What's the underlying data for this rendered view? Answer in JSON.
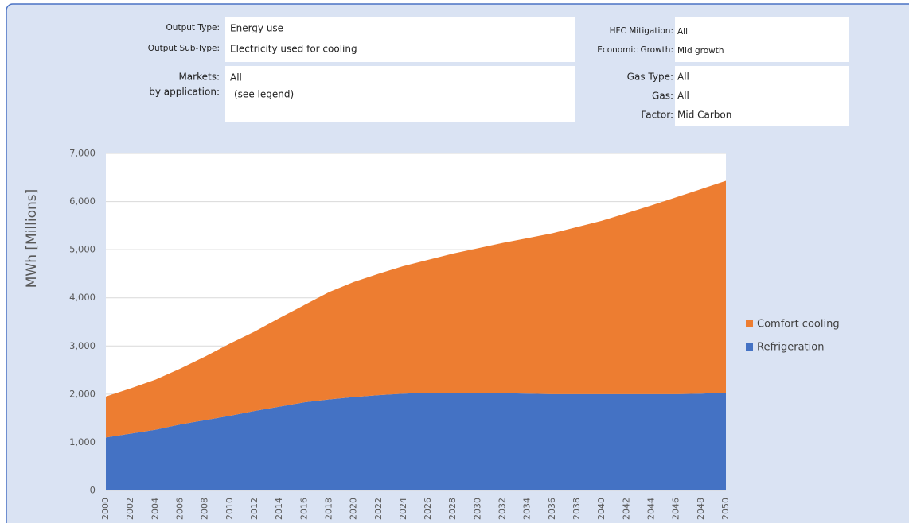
{
  "panel": {
    "left": [
      {
        "label": "Output Type:",
        "value": "Energy use"
      },
      {
        "label": "Output Sub-Type:",
        "value": "Electricity used for cooling"
      },
      {
        "label": "Markets:",
        "value": "All"
      },
      {
        "label": "by application:",
        "value": "(see legend)"
      }
    ],
    "right": [
      {
        "label": "HFC Mitigation:",
        "value": "All"
      },
      {
        "label": "Economic Growth:",
        "value": "Mid growth"
      },
      {
        "label": "Gas Type:",
        "value": "All"
      },
      {
        "label": "Gas:",
        "value": "All"
      },
      {
        "label": "Factor:",
        "value": "Mid Carbon"
      }
    ]
  },
  "chart_data": {
    "type": "stacked-area",
    "y_label": "MWh [Millions]",
    "categories": [
      "2000",
      "2002",
      "2004",
      "2006",
      "2008",
      "2010",
      "2012",
      "2014",
      "2016",
      "2018",
      "2020",
      "2022",
      "2024",
      "2026",
      "2028",
      "2030",
      "2032",
      "2034",
      "2036",
      "2038",
      "2040",
      "2042",
      "2044",
      "2046",
      "2048",
      "2050"
    ],
    "series": [
      {
        "name": "Refrigeration",
        "color": "#4472c4",
        "values": [
          1100,
          1180,
          1260,
          1370,
          1460,
          1550,
          1650,
          1740,
          1830,
          1890,
          1940,
          1980,
          2010,
          2030,
          2030,
          2030,
          2020,
          2010,
          2000,
          2000,
          2000,
          2000,
          2000,
          2000,
          2010,
          2030
        ]
      },
      {
        "name": "Comfort cooling",
        "color": "#ed7d31",
        "values": [
          850,
          940,
          1040,
          1160,
          1320,
          1500,
          1650,
          1840,
          2020,
          2230,
          2390,
          2520,
          2650,
          2760,
          2890,
          3000,
          3120,
          3230,
          3340,
          3470,
          3600,
          3760,
          3920,
          4090,
          4250,
          4400
        ]
      }
    ],
    "ylim": [
      0,
      7000
    ],
    "yticks": [
      0,
      {
        "value": 1000,
        "label": "1,000"
      },
      {
        "value": 2000,
        "label": "2,000"
      },
      {
        "value": 3000,
        "label": "3,000"
      },
      {
        "value": 4000,
        "label": "4,000"
      },
      {
        "value": 5000,
        "label": "5,000"
      },
      {
        "value": 6000,
        "label": "6,000"
      },
      {
        "value": 7000,
        "label": "7,000"
      }
    ],
    "grid": true,
    "legend": "right"
  }
}
